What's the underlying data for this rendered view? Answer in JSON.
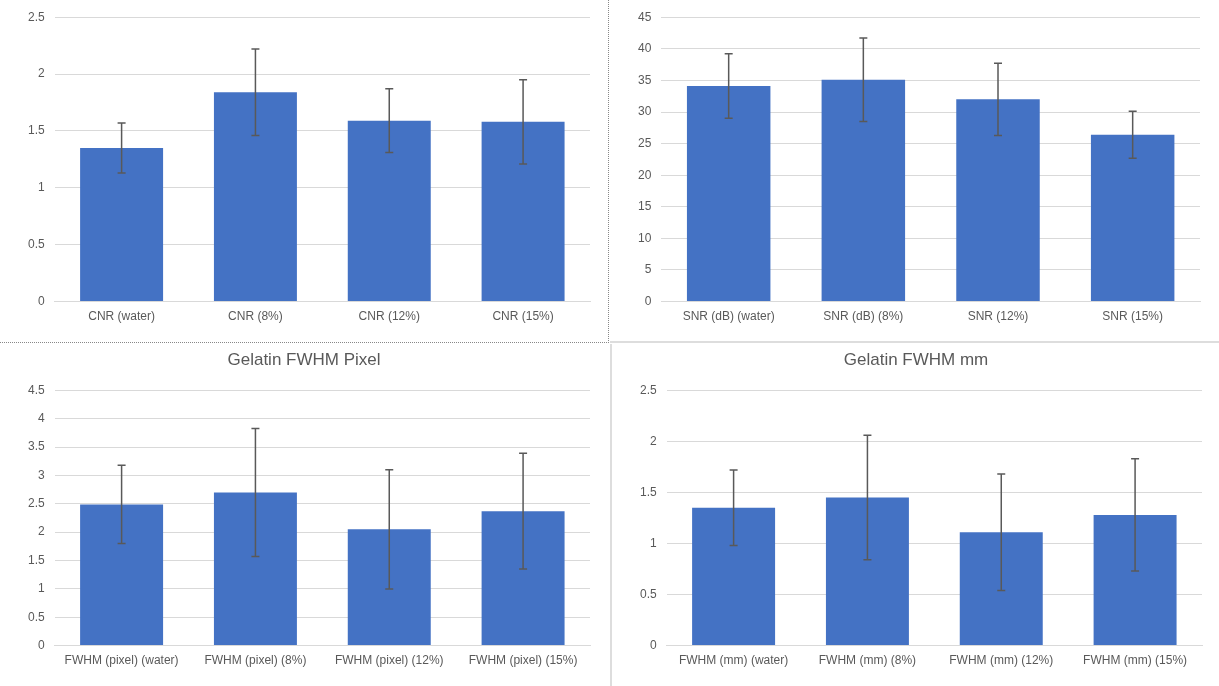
{
  "chart_data": [
    {
      "type": "bar",
      "categories": [
        "CNR (water)",
        "CNR (8%)",
        "CNR (12%)",
        "CNR (15%)"
      ],
      "values": [
        1.35,
        1.84,
        1.59,
        1.58
      ],
      "errors": [
        0.22,
        0.38,
        0.28,
        0.37
      ],
      "color": "#4472c4",
      "ylim": [
        0,
        2.5
      ],
      "yticks": [
        0,
        0.5,
        1,
        1.5,
        2,
        2.5
      ],
      "grid": "y",
      "legend": false
    },
    {
      "type": "bar",
      "categories": [
        "SNR (dB) (water)",
        "SNR (dB) (8%)",
        "SNR (12%)",
        "SNR (15%)"
      ],
      "values": [
        34.1,
        35.1,
        32,
        26.4
      ],
      "errors": [
        5.1,
        6.6,
        5.7,
        3.7
      ],
      "color": "#4472c4",
      "ylim": [
        0,
        45
      ],
      "yticks": [
        0,
        5,
        10,
        15,
        20,
        25,
        30,
        35,
        40,
        45
      ],
      "grid": "y",
      "legend": false
    },
    {
      "type": "bar",
      "title": "Gelatin FWHM Pixel",
      "categories": [
        "FWHM (pixel) (water)",
        "FWHM (pixel) (8%)",
        "FWHM (pixel) (12%)",
        "FWHM (pixel) (15%)"
      ],
      "values": [
        2.49,
        2.7,
        2.05,
        2.37
      ],
      "errors": [
        0.69,
        1.13,
        1.05,
        1.02
      ],
      "color": "#4472c4",
      "ylim": [
        0,
        4.5
      ],
      "yticks": [
        0,
        0.5,
        1,
        1.5,
        2,
        2.5,
        3,
        3.5,
        4,
        4.5
      ],
      "grid": "y",
      "legend": false
    },
    {
      "type": "bar",
      "title": "Gelatin FWHM mm",
      "categories": [
        "FWHM (mm) (water)",
        "FWHM (mm) (8%)",
        "FWHM (mm) (12%)",
        "FWHM (mm) (15%)"
      ],
      "values": [
        1.35,
        1.45,
        1.11,
        1.28
      ],
      "errors": [
        0.37,
        0.61,
        0.57,
        0.55
      ],
      "color": "#4472c4",
      "ylim": [
        0,
        2.5
      ],
      "yticks": [
        0,
        0.5,
        1,
        1.5,
        2,
        2.5
      ],
      "grid": "y",
      "legend": false
    }
  ]
}
